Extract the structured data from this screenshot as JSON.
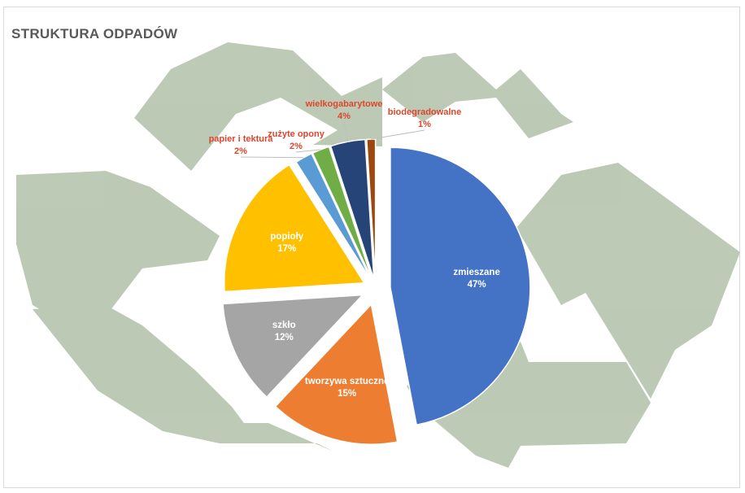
{
  "chart_data": {
    "type": "pie",
    "title": "STRUKTURA ODPADÓW",
    "slices": [
      {
        "label": "zmieszane",
        "percent_label": "47%",
        "value": 47,
        "color": "#4472c4",
        "label_position": "inside"
      },
      {
        "label": "tworzywa sztuczne",
        "percent_label": "15%",
        "value": 15,
        "color": "#ed7d31",
        "label_position": "inside"
      },
      {
        "label": "szkło",
        "percent_label": "12%",
        "value": 12,
        "color": "#a5a5a5",
        "label_position": "inside"
      },
      {
        "label": "popioły",
        "percent_label": "17%",
        "value": 17,
        "color": "#ffc000",
        "label_position": "inside"
      },
      {
        "label": "papier i tektura",
        "percent_label": "2%",
        "value": 2,
        "color": "#5b9bd5",
        "label_position": "outside"
      },
      {
        "label": "zużyte opony",
        "percent_label": "2%",
        "value": 2,
        "color": "#70ad47",
        "label_position": "outside"
      },
      {
        "label": "wielkogabarytowe",
        "percent_label": "4%",
        "value": 4,
        "color": "#264478",
        "label_position": "outside"
      },
      {
        "label": "biodegradowalne",
        "percent_label": "1%",
        "value": 1,
        "color": "#9e480e",
        "label_position": "outside"
      }
    ],
    "background_color": "#b8c6b0"
  }
}
